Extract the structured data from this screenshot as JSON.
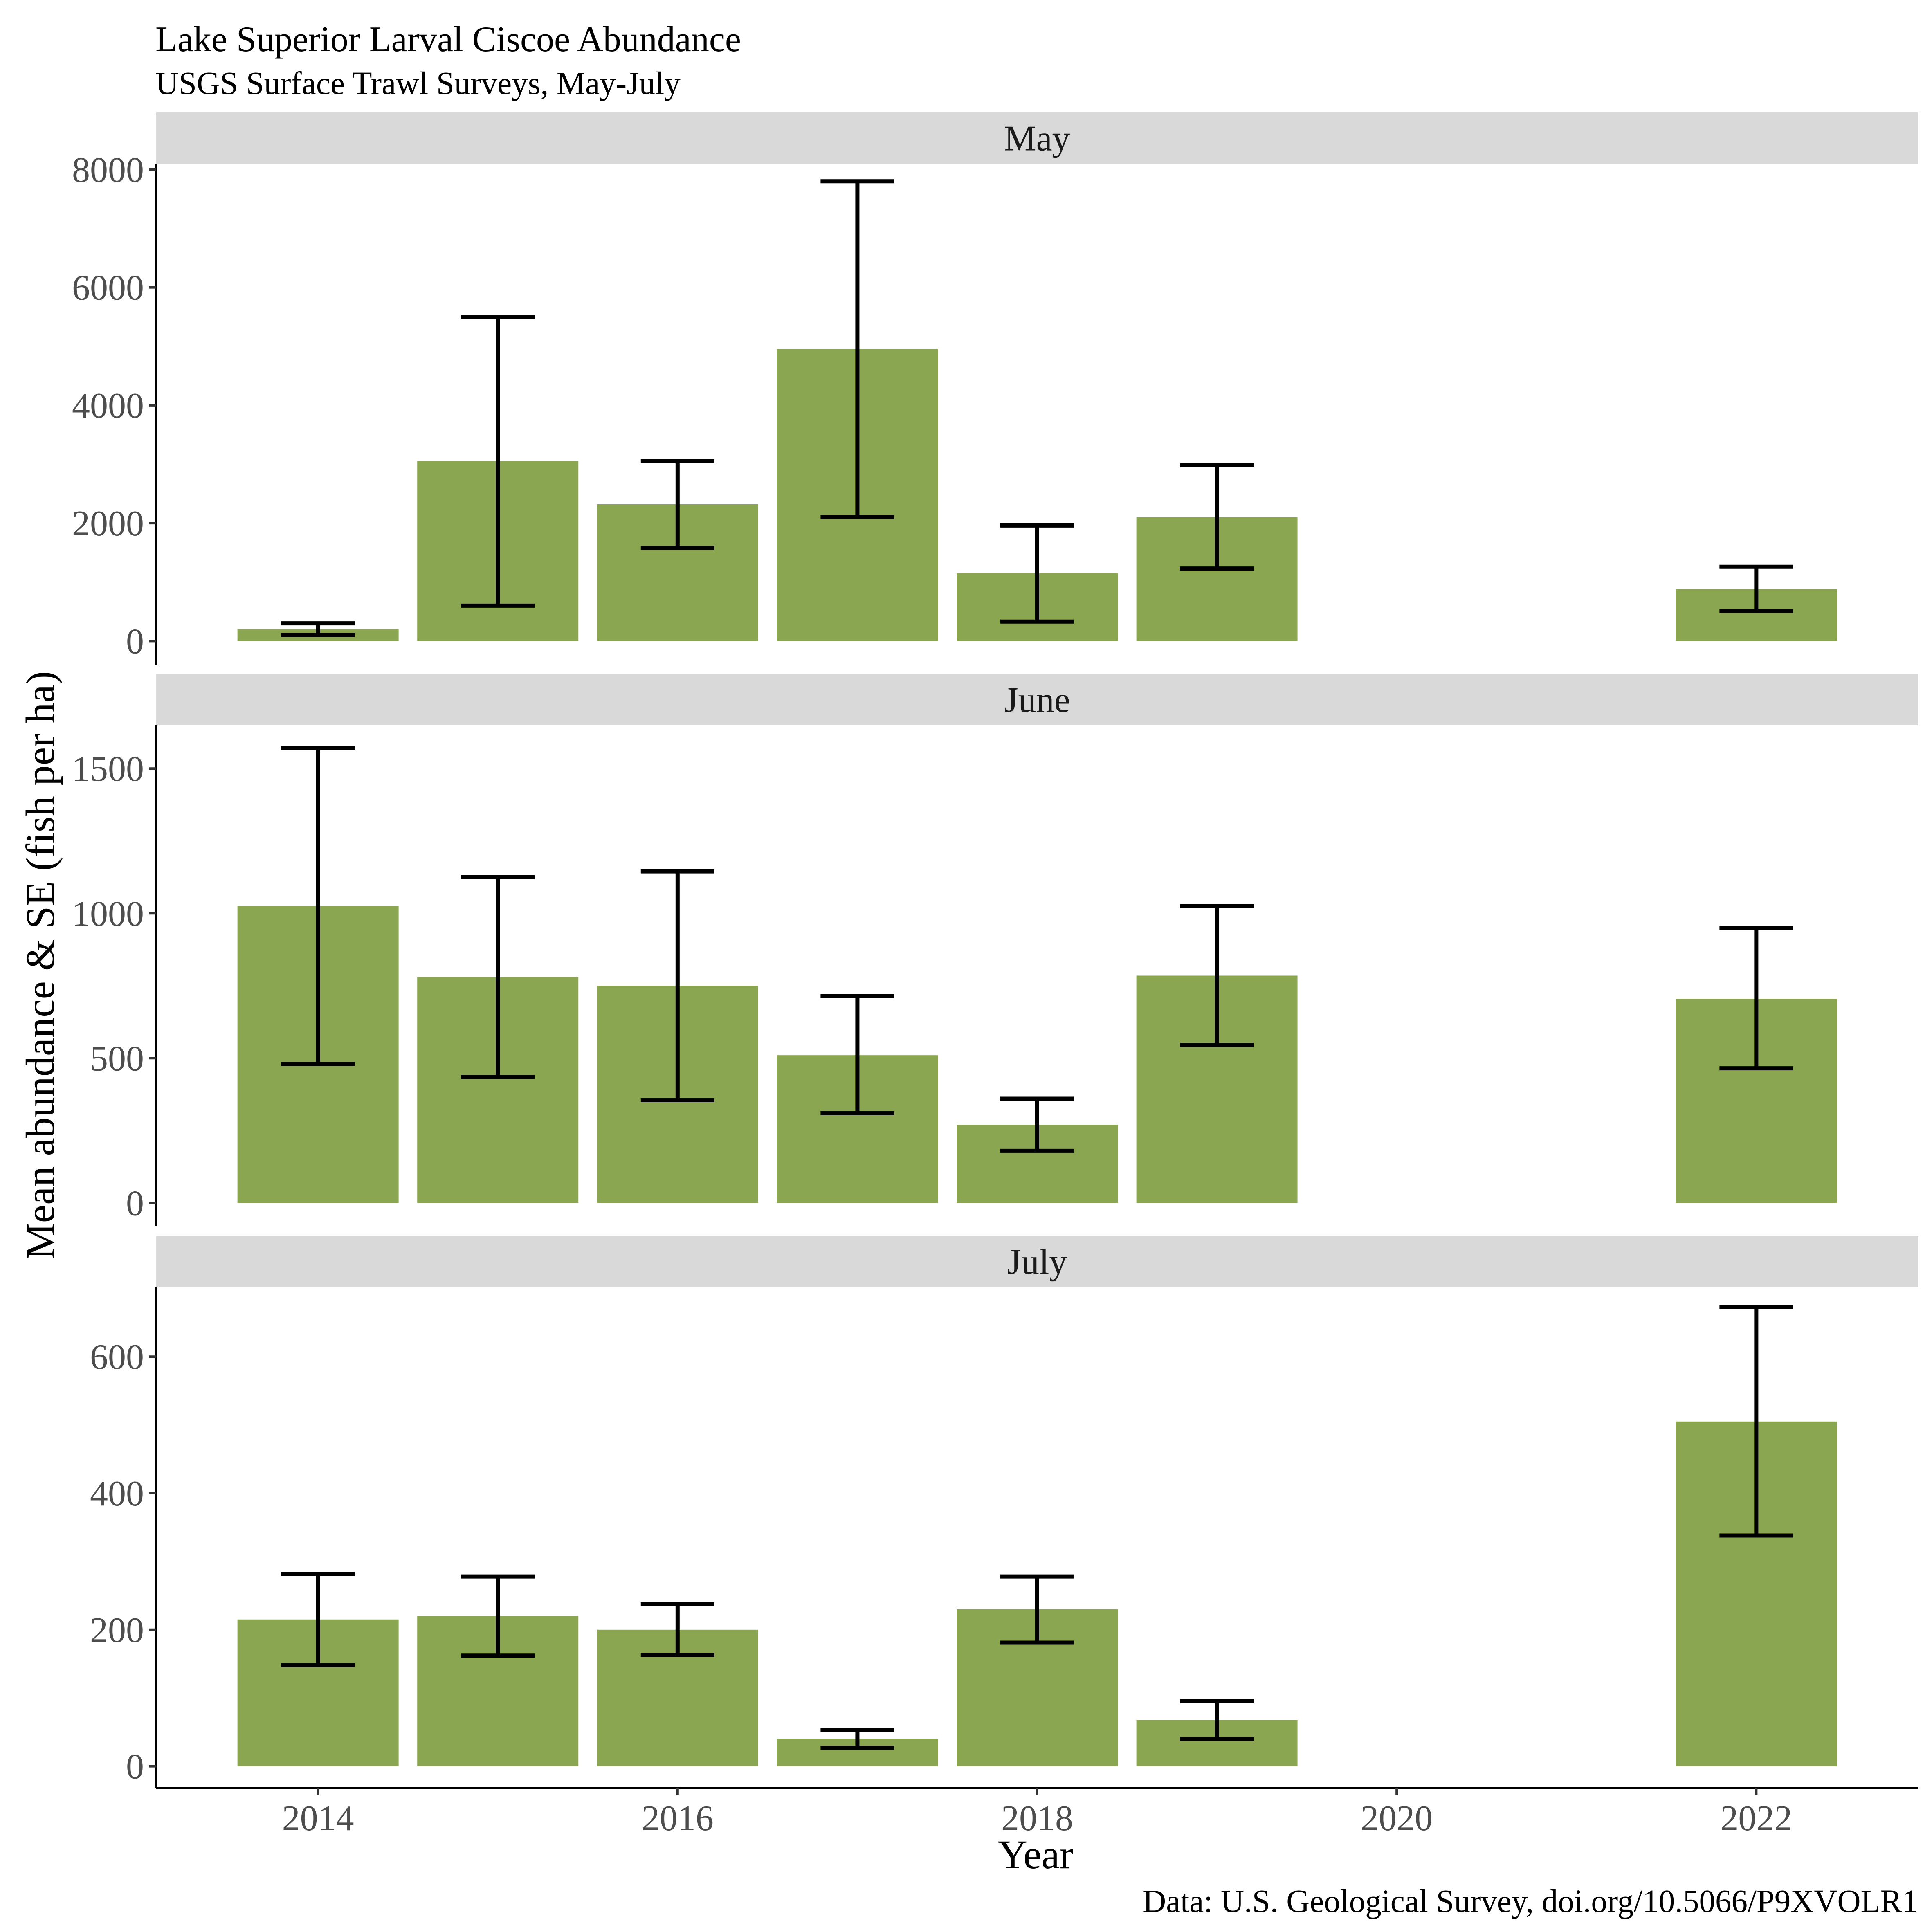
{
  "chart_data": {
    "type": "bar",
    "title": "Lake Superior Larval Ciscoe Abundance",
    "subtitle": "USGS Surface Trawl Surveys, May-July",
    "xlabel": "Year",
    "ylabel": "Mean abundance & SE (fish per ha)",
    "caption": "Data: U.S. Geological Survey, doi.org/10.5066/P9XVOLR1",
    "bar_color": "#8aa650",
    "strip_color": "#d9d9d9",
    "error_bar_color": "#000000",
    "grid": false,
    "legend": "none",
    "xlim": [
      2013.1,
      2022.9
    ],
    "x_ticks": [
      2014,
      2016,
      2018,
      2020,
      2022
    ],
    "panels": [
      {
        "label": "May",
        "ylim": [
          -400,
          8100
        ],
        "y_ticks": [
          0,
          2000,
          4000,
          6000,
          8000
        ],
        "bars": [
          {
            "year": 2014,
            "mean": 200,
            "se_low": 100,
            "se_high": 300
          },
          {
            "year": 2015,
            "mean": 3050,
            "se_low": 600,
            "se_high": 5500
          },
          {
            "year": 2016,
            "mean": 2320,
            "se_low": 1580,
            "se_high": 3050
          },
          {
            "year": 2017,
            "mean": 4950,
            "se_low": 2100,
            "se_high": 7800
          },
          {
            "year": 2018,
            "mean": 1150,
            "se_low": 330,
            "se_high": 1960
          },
          {
            "year": 2019,
            "mean": 2100,
            "se_low": 1230,
            "se_high": 2980
          },
          {
            "year": 2022,
            "mean": 880,
            "se_low": 510,
            "se_high": 1260
          }
        ]
      },
      {
        "label": "June",
        "ylim": [
          -80,
          1650
        ],
        "y_ticks": [
          0,
          500,
          1000,
          1500
        ],
        "bars": [
          {
            "year": 2014,
            "mean": 1025,
            "se_low": 480,
            "se_high": 1570
          },
          {
            "year": 2015,
            "mean": 780,
            "se_low": 435,
            "se_high": 1125
          },
          {
            "year": 2016,
            "mean": 750,
            "se_low": 355,
            "se_high": 1145
          },
          {
            "year": 2017,
            "mean": 510,
            "se_low": 310,
            "se_high": 715
          },
          {
            "year": 2018,
            "mean": 270,
            "se_low": 180,
            "se_high": 360
          },
          {
            "year": 2019,
            "mean": 785,
            "se_low": 545,
            "se_high": 1025
          },
          {
            "year": 2022,
            "mean": 705,
            "se_low": 465,
            "se_high": 950
          }
        ]
      },
      {
        "label": "July",
        "ylim": [
          -32,
          702
        ],
        "y_ticks": [
          0,
          200,
          400,
          600
        ],
        "bars": [
          {
            "year": 2014,
            "mean": 215,
            "se_low": 148,
            "se_high": 282
          },
          {
            "year": 2015,
            "mean": 220,
            "se_low": 162,
            "se_high": 278
          },
          {
            "year": 2016,
            "mean": 200,
            "se_low": 163,
            "se_high": 237
          },
          {
            "year": 2017,
            "mean": 40,
            "se_low": 27,
            "se_high": 53
          },
          {
            "year": 2018,
            "mean": 230,
            "se_low": 181,
            "se_high": 278
          },
          {
            "year": 2019,
            "mean": 68,
            "se_low": 40,
            "se_high": 95
          },
          {
            "year": 2022,
            "mean": 505,
            "se_low": 338,
            "se_high": 673
          }
        ]
      }
    ]
  }
}
